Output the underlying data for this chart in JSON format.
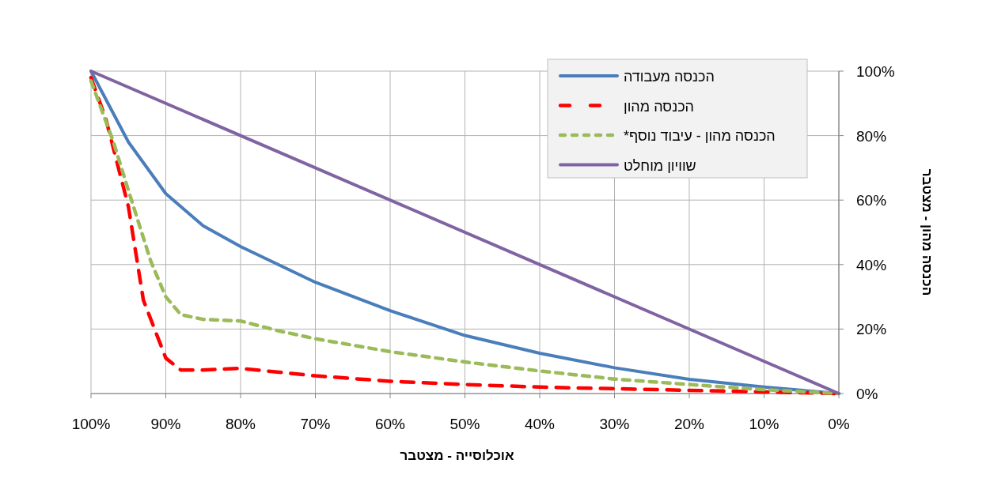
{
  "chart_data": {
    "type": "line",
    "xlabel": "אוכלוסייה - מצטבר",
    "ylabel": "הכנסה מהון - מצטבר",
    "xlim": [
      100,
      0
    ],
    "ylim": [
      0,
      100
    ],
    "xticks": [
      {
        "value": 100,
        "label": "100%"
      },
      {
        "value": 90,
        "label": "90%"
      },
      {
        "value": 80,
        "label": "80%"
      },
      {
        "value": 70,
        "label": "70%"
      },
      {
        "value": 60,
        "label": "60%"
      },
      {
        "value": 50,
        "label": "50%"
      },
      {
        "value": 40,
        "label": "40%"
      },
      {
        "value": 30,
        "label": "30%"
      },
      {
        "value": 20,
        "label": "20%"
      },
      {
        "value": 10,
        "label": "10%"
      },
      {
        "value": 0,
        "label": "0%"
      }
    ],
    "yticks": [
      {
        "value": 0,
        "label": "0%"
      },
      {
        "value": 20,
        "label": "20%"
      },
      {
        "value": 40,
        "label": "40%"
      },
      {
        "value": 60,
        "label": "60%"
      },
      {
        "value": 80,
        "label": "80%"
      },
      {
        "value": 100,
        "label": "100%"
      }
    ],
    "grid": true,
    "legend": "top right",
    "series": [
      {
        "name": "הכנסה מעבודה",
        "color": "#4a7ebb",
        "line_style": "solid",
        "x": [
          100,
          95,
          90,
          85,
          80,
          70,
          60,
          50,
          40,
          30,
          20,
          10,
          0
        ],
        "values": [
          100,
          78,
          62,
          52,
          45.6,
          34.5,
          25.7,
          18,
          12.5,
          8,
          4.4,
          2,
          0
        ]
      },
      {
        "name": "הכנסה מהון",
        "color": "#ff0000",
        "line_style": "dashed",
        "x": [
          100,
          98,
          95,
          93,
          91,
          90,
          88,
          85,
          80,
          70,
          60,
          50,
          40,
          30,
          20,
          10,
          0
        ],
        "values": [
          98,
          85,
          58,
          29,
          17,
          11,
          7.3,
          7.3,
          7.8,
          5.5,
          3.8,
          2.8,
          2,
          1.5,
          1,
          0.5,
          0
        ]
      },
      {
        "name": "הכנסה מהון - עיבוד נוסף*",
        "color": "#9bbb59",
        "line_style": "dashed",
        "x": [
          100,
          97,
          95,
          92,
          90,
          88,
          85,
          80,
          75,
          70,
          60,
          50,
          40,
          30,
          20,
          10,
          0
        ],
        "values": [
          97,
          78,
          63,
          41,
          30,
          24.5,
          23,
          22.5,
          19.5,
          17,
          13,
          9.8,
          7,
          4.5,
          2.8,
          1.2,
          0
        ]
      },
      {
        "name": "שוויון מוחלט",
        "color": "#8064a2",
        "line_style": "solid",
        "x": [
          100,
          0
        ],
        "values": [
          100,
          0
        ]
      }
    ]
  }
}
